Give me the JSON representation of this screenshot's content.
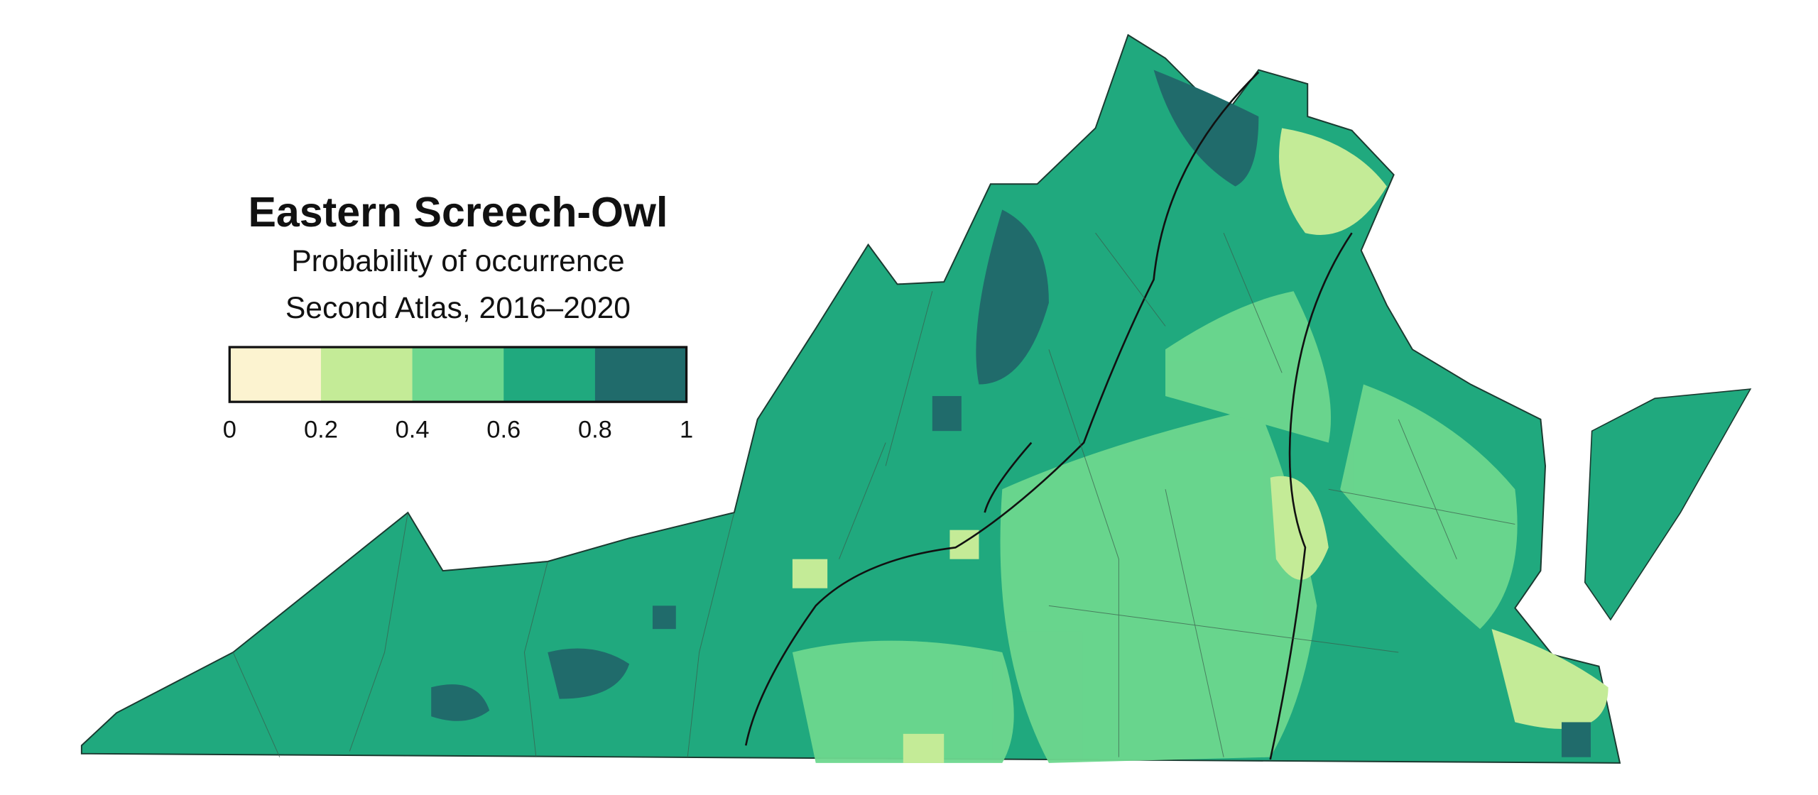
{
  "title": "Eastern Screech-Owl",
  "subtitle": "Probability of occurrence",
  "subtitle2": "Second Atlas, 2016–2020",
  "legend": {
    "colors": [
      "#fcf3d0",
      "#c4eb97",
      "#6dd78e",
      "#20a97e",
      "#206b6b"
    ],
    "ticks": [
      0,
      0.2,
      0.4,
      0.6,
      0.8,
      1
    ]
  }
}
